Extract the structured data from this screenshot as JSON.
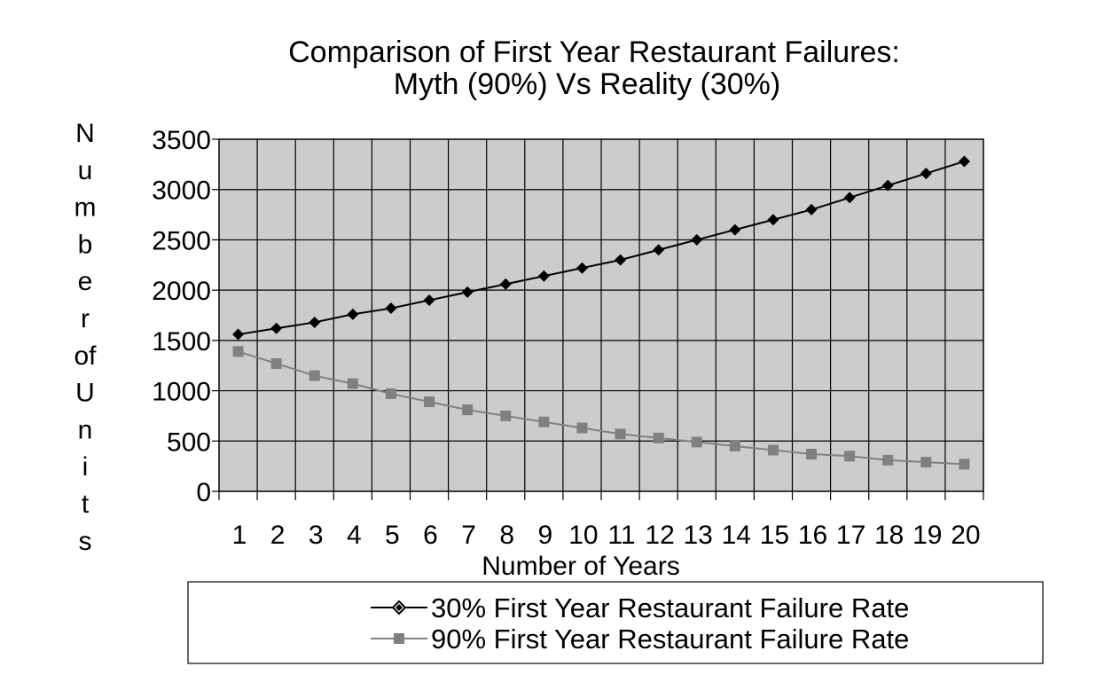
{
  "chart_data": {
    "type": "line",
    "title_line1": "Comparison of First Year Restaurant Failures:",
    "title_line2": "Myth (90%) Vs Reality  (30%)",
    "xlabel": "Number of Years",
    "ylabel_chars": [
      "N",
      "u",
      "m",
      "b",
      "e",
      "r",
      "of",
      "U",
      "n",
      "i",
      "t",
      "s"
    ],
    "categories": [
      "1",
      "2",
      "3",
      "4",
      "5",
      "6",
      "7",
      "8",
      "9",
      "10",
      "11",
      "12",
      "13",
      "14",
      "15",
      "16",
      "17",
      "18",
      "19",
      "20"
    ],
    "ylim": [
      0,
      3500
    ],
    "yticks": [
      "0",
      "500",
      "1000",
      "1500",
      "2000",
      "2500",
      "3000",
      "3500"
    ],
    "ytick_values": [
      0,
      500,
      1000,
      1500,
      2000,
      2500,
      3000,
      3500
    ],
    "grid": true,
    "legend_position": "bottom",
    "series": [
      {
        "name": "30% First Year Restaurant Failure Rate",
        "color": "#000000",
        "marker": "diamond",
        "values": [
          1560,
          1620,
          1680,
          1760,
          1820,
          1900,
          1980,
          2060,
          2140,
          2220,
          2300,
          2400,
          2500,
          2600,
          2700,
          2800,
          2920,
          3040,
          3160,
          3280
        ]
      },
      {
        "name": "90% First Year Restaurant Failure Rate",
        "color": "#808080",
        "marker": "square",
        "values": [
          1390,
          1270,
          1150,
          1070,
          970,
          890,
          810,
          750,
          690,
          630,
          570,
          530,
          490,
          450,
          410,
          370,
          350,
          310,
          290,
          270
        ]
      }
    ],
    "plot_background": "#cccccc"
  }
}
